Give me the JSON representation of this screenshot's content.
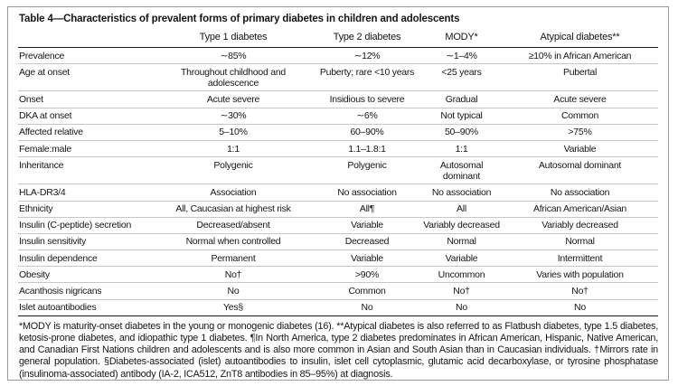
{
  "table": {
    "title": "Table 4—Characteristics of prevalent forms of primary diabetes in children and adolescents",
    "columns": [
      "",
      "Type 1 diabetes",
      "Type 2 diabetes",
      "MODY*",
      "Atypical diabetes**"
    ],
    "rows": [
      {
        "label": "Prevalence",
        "values": [
          "∼85%",
          "∼12%",
          "∼1–4%",
          "≥10% in African American"
        ]
      },
      {
        "label": "Age at onset",
        "values": [
          "Throughout childhood and adolescence",
          "Puberty; rare <10 years",
          "<25 years",
          "Pubertal"
        ]
      },
      {
        "label": "Onset",
        "values": [
          "Acute severe",
          "Insidious to severe",
          "Gradual",
          "Acute severe"
        ]
      },
      {
        "label": "DKA at onset",
        "values": [
          "∼30%",
          "∼6%",
          "Not typical",
          "Common"
        ]
      },
      {
        "label": "Affected relative",
        "values": [
          "5–10%",
          "60–90%",
          "50–90%",
          ">75%"
        ]
      },
      {
        "label": "Female:male",
        "values": [
          "1:1",
          "1.1–1.8:1",
          "1:1",
          "Variable"
        ]
      },
      {
        "label": "Inheritance",
        "values": [
          "Polygenic",
          "Polygenic",
          "Autosomal\ndominant",
          "Autosomal dominant"
        ]
      },
      {
        "label": "HLA-DR3/4",
        "values": [
          "Association",
          "No association",
          "No association",
          "No association"
        ]
      },
      {
        "label": "Ethnicity",
        "values": [
          "All, Caucasian at highest risk",
          "All¶",
          "All",
          "African American/Asian"
        ]
      },
      {
        "label": "Insulin (C-peptide) secretion",
        "values": [
          "Decreased/absent",
          "Variable",
          "Variably decreased",
          "Variably decreased"
        ]
      },
      {
        "label": "Insulin sensitivity",
        "values": [
          "Normal when controlled",
          "Decreased",
          "Normal",
          "Normal"
        ]
      },
      {
        "label": "Insulin dependence",
        "values": [
          "Permanent",
          "Variable",
          "Variable",
          "Intermittent"
        ]
      },
      {
        "label": "Obesity",
        "values": [
          "No†",
          ">90%",
          "Uncommon",
          "Varies with population"
        ]
      },
      {
        "label": "Acanthosis nigricans",
        "values": [
          "No",
          "Common",
          "No†",
          "No†"
        ]
      },
      {
        "label": "Islet autoantibodies",
        "values": [
          "Yes§",
          "No",
          "No",
          "No"
        ]
      }
    ],
    "footnote": "*MODY is maturity-onset diabetes in the young or monogenic diabetes (16). **Atypical diabetes is also referred to as Flatbush diabetes, type 1.5 diabetes, ketosis-prone diabetes, and idiopathic type 1 diabetes. ¶In North America, type 2 diabetes predominates in African American, Hispanic, Native American, and Canadian First Nations children and adolescents and is also more common in Asian and South Asian than in Caucasian individuals. †Mirrors rate in general population. §Diabetes-associated (islet) autoantibodies to insulin, islet cell cytoplasmic, glutamic acid decarboxylase, or tyrosine phosphatase (insulinoma-associated) antibody (IA-2, ICA512, ZnT8 antibodies in 85–95%) at diagnosis."
  }
}
